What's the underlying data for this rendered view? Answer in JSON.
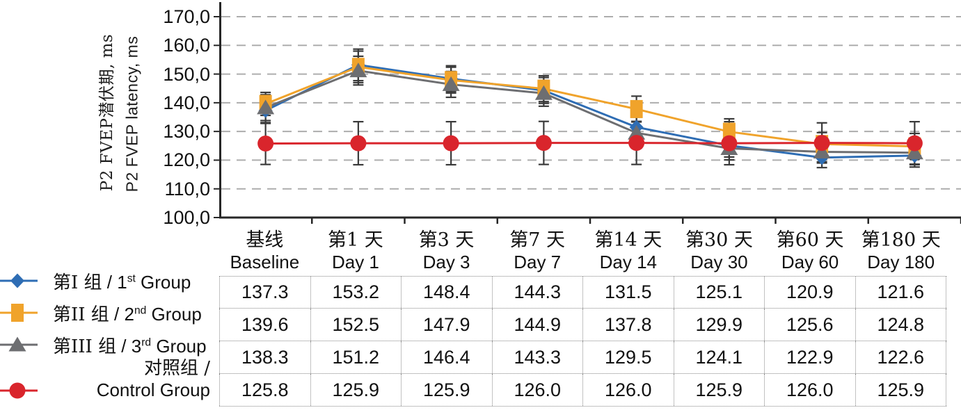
{
  "figure": {
    "y_axis": {
      "title_zh": "P2 FVEP潜伏期, ms",
      "title_en": "P2 FVEP latency, ms",
      "tick_labels": [
        "170,0",
        "160,0",
        "150,0",
        "140,0",
        "130,0",
        "120,0",
        "110,0",
        "100,0"
      ],
      "min": 100,
      "max": 170,
      "step": 10
    },
    "legend": [
      {
        "zh": "第I 组",
        "num": "1",
        "ord": "st",
        "en": "Group",
        "marker": "diamond",
        "color": "#2E6DB4"
      },
      {
        "zh": "第II 组",
        "num": "2",
        "ord": "nd",
        "en": "Group",
        "marker": "square",
        "color": "#F0A32B"
      },
      {
        "zh": "第III 组",
        "num": "3",
        "ord": "rd",
        "en": "Group",
        "marker": "triangle",
        "color": "#6D6E71"
      },
      {
        "zh": "对照组 /",
        "en": "Control Group",
        "marker": "circle",
        "color": "#D9252C"
      }
    ],
    "colors": {
      "group1": "#2E6DB4",
      "group2": "#F0A32B",
      "group3": "#6D6E71",
      "control": "#D9252C",
      "gridline": "#ADADAD",
      "axis": "#262626",
      "error_bar": "#3A3A3A",
      "table_border": "#858585"
    }
  },
  "chart_data": {
    "type": "line",
    "title": "",
    "ylabel_zh": "P2 FVEP潜伏期, ms",
    "ylabel": "P2 FVEP latency, ms",
    "xlabel": "",
    "ylim": [
      100,
      170
    ],
    "ytick_step": 10,
    "grid": "horizontal-dashed",
    "legend_position": "bottom-left",
    "error_bars": true,
    "categories_zh": [
      "基线",
      "第1 天",
      "第3 天",
      "第7 天",
      "第14 天",
      "第30 天",
      "第60 天",
      "第180 天"
    ],
    "categories_en": [
      "Baseline",
      "Day 1",
      "Day 3",
      "Day 7",
      "Day 14",
      "Day 30",
      "Day 60",
      "Day 180"
    ],
    "series": [
      {
        "name": "第I 组 / 1st Group",
        "marker": "diamond",
        "color": "#2E6DB4",
        "values": [
          137.3,
          153.2,
          148.4,
          144.3,
          131.5,
          125.1,
          120.9,
          121.6
        ],
        "errors_est": [
          4.5,
          5.5,
          4.5,
          4.5,
          4.0,
          4.0,
          3.5,
          4.0
        ]
      },
      {
        "name": "第II 组 / 2nd Group",
        "marker": "square",
        "color": "#F0A32B",
        "values": [
          139.6,
          152.5,
          147.9,
          144.9,
          137.8,
          129.9,
          125.6,
          124.8
        ],
        "errors_est": [
          4.0,
          5.5,
          4.5,
          4.5,
          4.5,
          4.5,
          4.0,
          4.5
        ]
      },
      {
        "name": "第III 组 / 3rd Group",
        "marker": "triangle",
        "color": "#6D6E71",
        "values": [
          138.3,
          151.2,
          146.4,
          143.3,
          129.5,
          124.1,
          122.9,
          122.6
        ],
        "errors_est": [
          4.5,
          5.0,
          4.5,
          4.5,
          4.0,
          4.0,
          3.5,
          4.0
        ]
      },
      {
        "name": "对照组 / Control Group",
        "marker": "circle",
        "color": "#D9252C",
        "values": [
          125.8,
          125.9,
          125.9,
          126.0,
          126.0,
          125.9,
          126.0,
          125.9
        ],
        "errors_est": [
          7.3,
          7.5,
          7.5,
          7.5,
          7.5,
          7.5,
          7.0,
          7.5
        ]
      }
    ]
  },
  "table": {
    "row_labels": [
      "第I 组 / 1st Group",
      "第II 组 / 2nd Group",
      "第III 组 / 3rd Group",
      "对照组 / Control Group"
    ],
    "rows": [
      [
        "137.3",
        "153.2",
        "148.4",
        "144.3",
        "131.5",
        "125.1",
        "120.9",
        "121.6"
      ],
      [
        "139.6",
        "152.5",
        "147.9",
        "144.9",
        "137.8",
        "129.9",
        "125.6",
        "124.8"
      ],
      [
        "138.3",
        "151.2",
        "146.4",
        "143.3",
        "129.5",
        "124.1",
        "122.9",
        "122.6"
      ],
      [
        "125.8",
        "125.9",
        "125.9",
        "126.0",
        "126.0",
        "125.9",
        "126.0",
        "125.9"
      ]
    ]
  }
}
